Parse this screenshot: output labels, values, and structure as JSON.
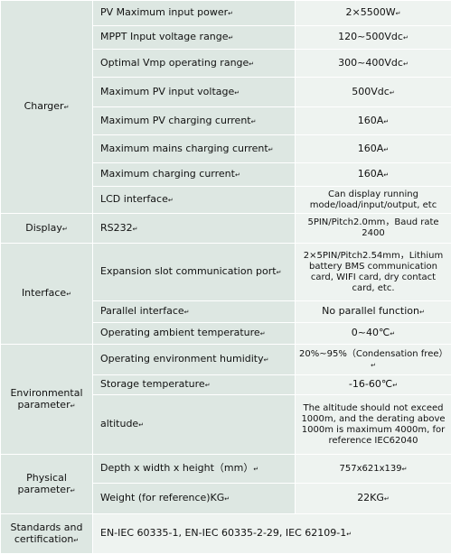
{
  "table": {
    "groups": [
      {
        "category": "Charger",
        "rows": [
          {
            "param": "PV Maximum input power",
            "value": "2×5500W"
          },
          {
            "param": "MPPT Input voltage range",
            "value": "120~500Vdc"
          },
          {
            "param": "Optimal Vmp operating range",
            "value": "300~400Vdc"
          },
          {
            "param": "Maximum PV input voltage",
            "value": "500Vdc"
          },
          {
            "param": "Maximum PV charging current",
            "value": "160A"
          },
          {
            "param": "Maximum mains charging current",
            "value": "160A"
          },
          {
            "param": "Maximum charging current",
            "value": "160A"
          },
          {
            "param": "LCD interface",
            "value": "Can display running mode/load/input/output, etc"
          }
        ]
      },
      {
        "category": "Display",
        "rows": [
          {
            "param": "RS232",
            "value": "5PIN/Pitch2.0mm，Baud rate 2400"
          }
        ]
      },
      {
        "category": "Interface",
        "rows": [
          {
            "param": "Expansion slot communication port",
            "value": "2×5PIN/Pitch2.54mm，Lithium battery BMS communication card, WIFI card, dry contact card, etc."
          },
          {
            "param": "Parallel interface",
            "value": "No parallel function"
          },
          {
            "param": "Operating ambient temperature",
            "value": "0~40℃"
          }
        ]
      },
      {
        "category": "Environmental parameter",
        "rows": [
          {
            "param": "Operating environment humidity",
            "value": "20%~95%（Condensation free）"
          },
          {
            "param": "Storage temperature",
            "value": "-16-60℃"
          },
          {
            "param": "altitude",
            "value": "The altitude should not exceed 1000m, and the derating above 1000m is maximum 4000m, for reference IEC62040"
          }
        ]
      },
      {
        "category": "Physical parameter",
        "rows": [
          {
            "param": "Depth x width  x height（mm）",
            "value": "757x621x139"
          },
          {
            "param": "Weight (for reference)KG",
            "value": "22KG"
          }
        ]
      },
      {
        "category": "Standards and certification",
        "rows": [
          {
            "param": "EN-IEC 60335-1, EN-IEC 60335-2-29, IEC 62109-1",
            "value": ""
          }
        ]
      }
    ]
  }
}
